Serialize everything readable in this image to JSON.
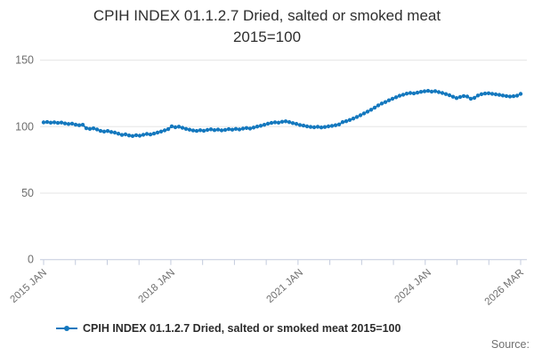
{
  "page": {
    "title_line1": "CPIH INDEX 01.1.2.7 Dried, salted or smoked meat",
    "title_line2": "2015=100",
    "source_label": "Source:"
  },
  "chart_data": {
    "type": "line",
    "title": "CPIH INDEX 01.1.2.7 Dried, salted or smoked meat 2015=100",
    "frequency": "monthly",
    "x_start": "2015 JAN",
    "x_end": "2026 MAR",
    "y_ticks": [
      150,
      100,
      50,
      0
    ],
    "ylim": [
      0,
      160
    ],
    "grid": "horizontal-only",
    "legend_position": "bottom-left",
    "minor_tick_count": 16,
    "x_tick_labels": [
      {
        "label": "2015 JAN",
        "month_index": 0
      },
      {
        "label": "2018 JAN",
        "month_index": 36
      },
      {
        "label": "2021 JAN",
        "month_index": 72
      },
      {
        "label": "2024 JAN",
        "month_index": 108
      },
      {
        "label": "2026 MAR",
        "month_index": 134
      }
    ],
    "series": [
      {
        "name": "CPIH INDEX 01.1.2.7 Dried, salted or smoked meat 2015=100",
        "color": "#1478be",
        "marker": "circle",
        "start": "2015-01",
        "end": "2026-03",
        "values": [
          103.2,
          103.5,
          103.0,
          103.3,
          102.8,
          103.1,
          102.4,
          102.0,
          102.3,
          101.5,
          101.1,
          101.4,
          98.8,
          98.3,
          98.7,
          97.9,
          96.8,
          96.3,
          96.7,
          96.0,
          95.5,
          94.7,
          93.8,
          94.2,
          93.4,
          93.0,
          93.6,
          93.2,
          93.9,
          94.5,
          94.1,
          94.8,
          95.6,
          96.3,
          97.2,
          98.1,
          100.3,
          99.5,
          100.0,
          99.1,
          98.3,
          97.7,
          97.1,
          96.8,
          97.3,
          96.9,
          97.5,
          98.0,
          97.4,
          97.8,
          97.2,
          97.6,
          98.1,
          97.7,
          98.3,
          97.9,
          98.5,
          99.0,
          98.6,
          99.3,
          100.1,
          100.7,
          101.4,
          102.2,
          102.8,
          103.3,
          103.0,
          103.7,
          104.0,
          103.4,
          102.7,
          102.1,
          101.3,
          100.8,
          100.2,
          99.8,
          99.5,
          99.9,
          99.4,
          99.7,
          100.2,
          100.6,
          101.1,
          101.7,
          103.4,
          104.1,
          105.0,
          106.1,
          107.3,
          108.6,
          110.0,
          111.3,
          112.7,
          114.3,
          116.0,
          117.4,
          118.5,
          119.8,
          121.0,
          122.1,
          123.2,
          124.0,
          124.8,
          125.3,
          125.0,
          125.6,
          126.2,
          126.6,
          126.9,
          126.4,
          126.7,
          126.0,
          125.3,
          124.5,
          123.6,
          122.5,
          121.5,
          122.3,
          123.0,
          122.6,
          121.0,
          121.6,
          123.4,
          124.4,
          124.9,
          125.1,
          124.7,
          124.3,
          123.9,
          123.4,
          123.0,
          122.7,
          122.9,
          123.3,
          124.6
        ]
      }
    ]
  }
}
